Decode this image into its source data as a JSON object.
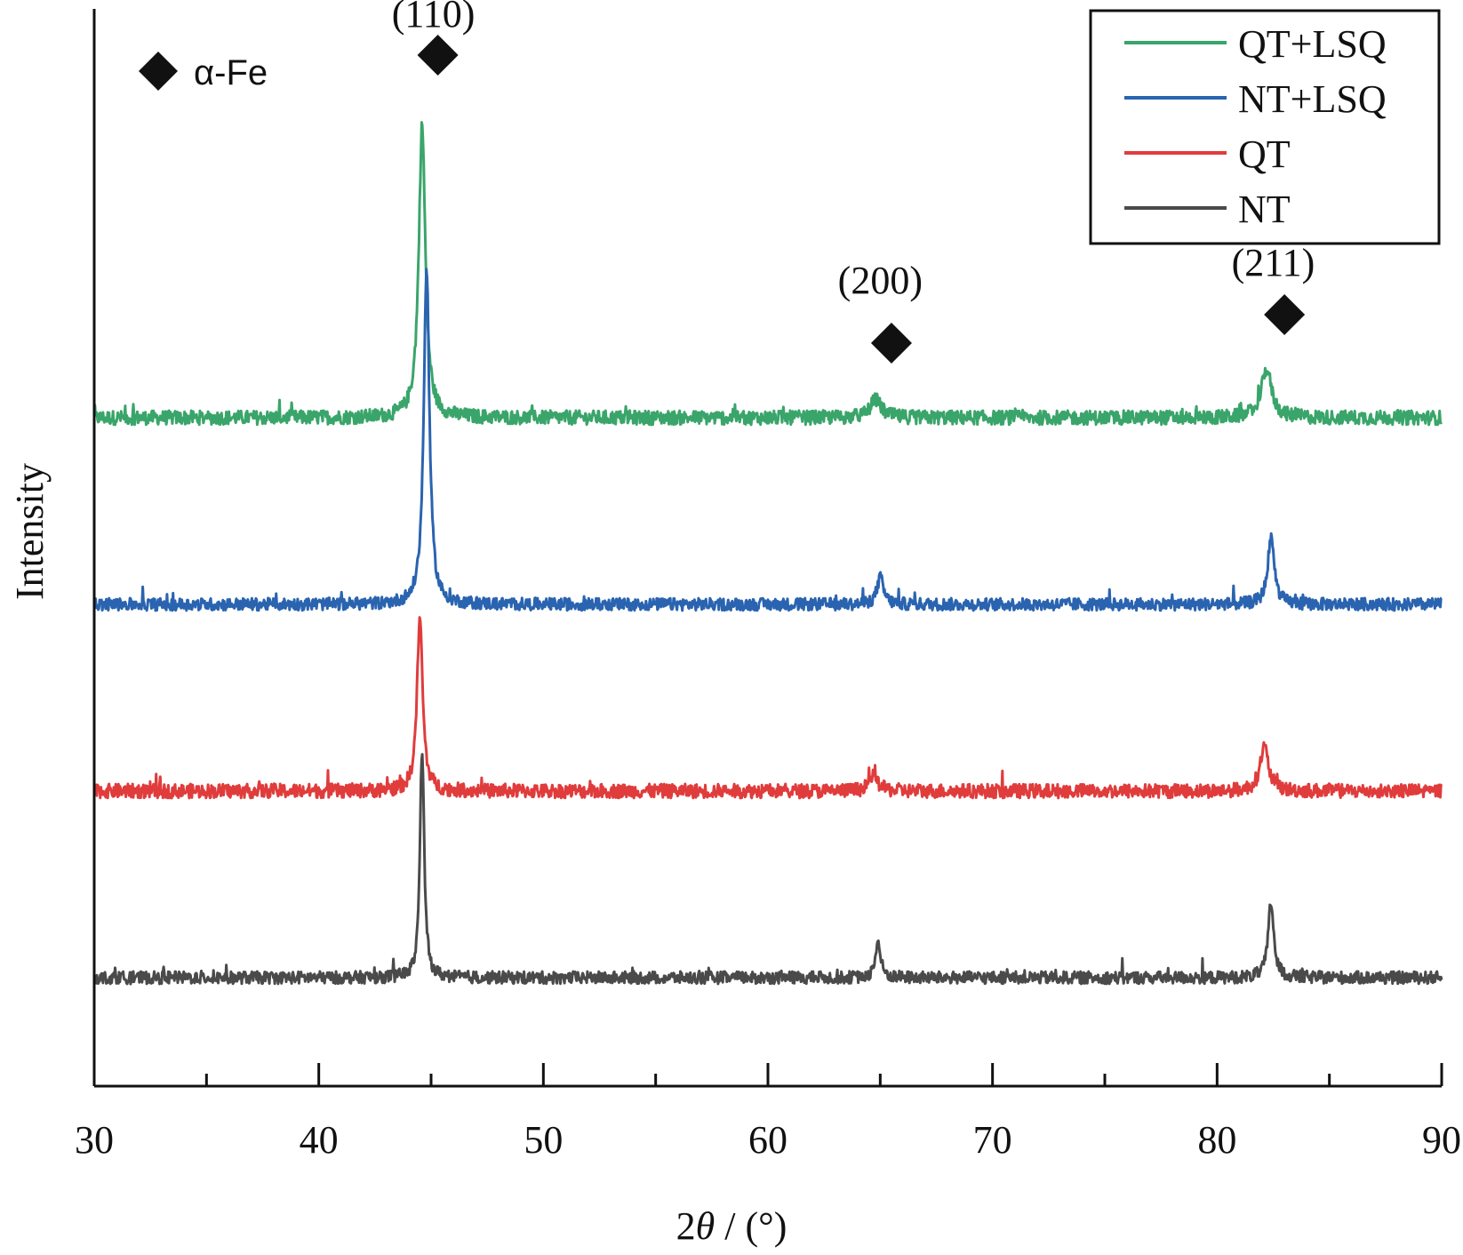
{
  "chart_data": {
    "type": "line",
    "xlabel": "2θ / (°)",
    "xlabel_parts": {
      "num": "2",
      "var": "θ",
      "unit": " / (°)"
    },
    "ylabel": "Intensity",
    "xlim": [
      30,
      90
    ],
    "x_ticks": [
      30,
      40,
      50,
      60,
      70,
      80,
      90
    ],
    "x_minor_ticks": [
      35,
      45,
      55,
      65,
      75,
      85
    ],
    "y_ticks_shown": false,
    "grid": false,
    "legend_position": "top-right",
    "marker_legend": {
      "symbol": "diamond",
      "label": "α-Fe"
    },
    "peak_labels": [
      {
        "label": "(110)",
        "x": 45.1
      },
      {
        "label": "(200)",
        "x": 65.0
      },
      {
        "label": "(211)",
        "x": 82.5
      }
    ],
    "peak_markers_x": [
      45.3,
      65.5,
      83.0
    ],
    "series": [
      {
        "name": "QT+LSQ",
        "color": "#3aa56a",
        "baseline": 650,
        "noise": 8,
        "peaks": [
          {
            "x": 44.6,
            "height": 330,
            "width": 0.35
          },
          {
            "x": 64.8,
            "height": 20,
            "width": 0.6
          },
          {
            "x": 82.2,
            "height": 55,
            "width": 0.55
          }
        ]
      },
      {
        "name": "NT+LSQ",
        "color": "#2a64b0",
        "baseline": 440,
        "noise": 7,
        "peaks": [
          {
            "x": 44.8,
            "height": 380,
            "width": 0.3
          },
          {
            "x": 65.0,
            "height": 30,
            "width": 0.35
          },
          {
            "x": 82.4,
            "height": 75,
            "width": 0.35
          }
        ]
      },
      {
        "name": "QT",
        "color": "#e03c3c",
        "baseline": 230,
        "noise": 8,
        "peaks": [
          {
            "x": 44.5,
            "height": 195,
            "width": 0.3
          },
          {
            "x": 64.7,
            "height": 18,
            "width": 0.45
          },
          {
            "x": 82.1,
            "height": 50,
            "width": 0.45
          }
        ]
      },
      {
        "name": "NT",
        "color": "#4a4a4a",
        "baseline": 20,
        "noise": 7,
        "peaks": [
          {
            "x": 44.6,
            "height": 260,
            "width": 0.22
          },
          {
            "x": 64.9,
            "height": 40,
            "width": 0.28
          },
          {
            "x": 82.4,
            "height": 85,
            "width": 0.3
          }
        ]
      }
    ]
  }
}
